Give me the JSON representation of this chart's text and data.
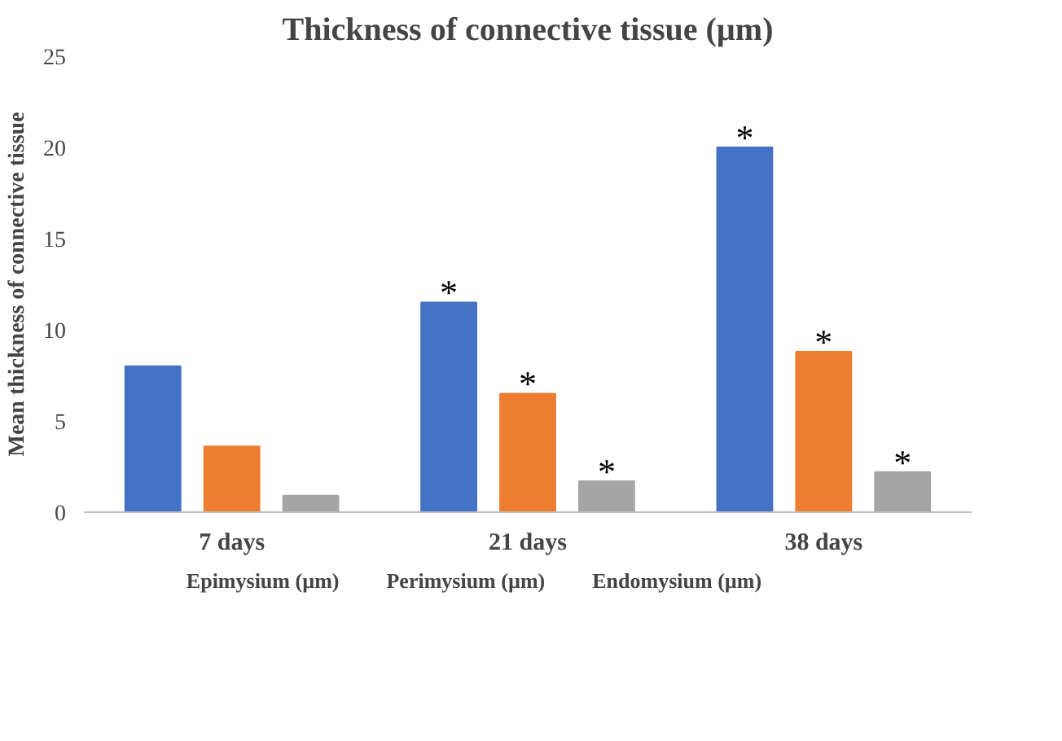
{
  "chart_data": {
    "type": "bar",
    "title": "Thickness of connective tissue (µm)",
    "ylabel": "Mean thickness of connective tissue",
    "categories": [
      "7 days",
      "21 days",
      "38 days"
    ],
    "series": [
      {
        "name": "Epimysium (µm)",
        "color": "#4472c4",
        "values": [
          8,
          11.5,
          20
        ]
      },
      {
        "name": "Perimysium (µm)",
        "color": "#ed7d31",
        "values": [
          3.6,
          6.5,
          8.8
        ]
      },
      {
        "name": "Endomysium (µm)",
        "color": "#a5a5a5",
        "values": [
          0.9,
          1.7,
          2.2
        ]
      }
    ],
    "ylim": [
      0,
      25
    ],
    "yticks": [
      0,
      5,
      10,
      15,
      20,
      25
    ],
    "grid": false,
    "legend": "bottom",
    "annotations": [
      "*",
      "*",
      "*",
      "*",
      "*",
      "*"
    ]
  }
}
